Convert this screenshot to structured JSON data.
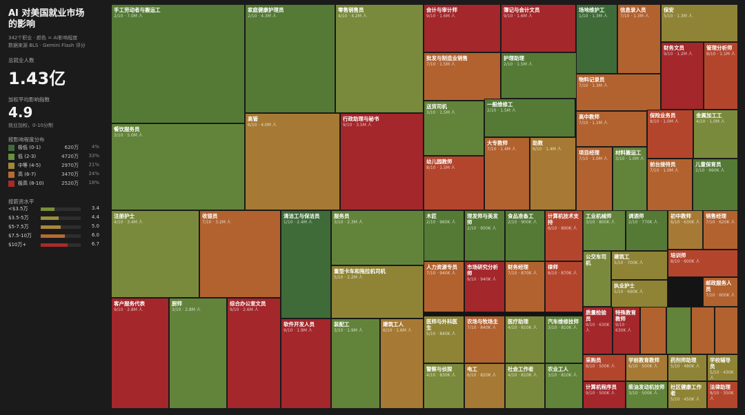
{
  "sidebar": {
    "title": "AI 对美国就业市场的影响",
    "subtitle_line1": "342个职业 · 颜色 = AI影响程度",
    "subtitle_line2": "数据来源 BLS · Gemini Flash 评分",
    "total_label": "总就业人数",
    "total_value": "1.43亿",
    "avg_label": "加权平均影响指数",
    "avg_value": "4.9",
    "avg_note": "就业加权，0-10分制",
    "dist_title": "按影响程度分布",
    "dist": [
      {
        "label": "极低 (0-1)",
        "count": "620万",
        "pct": "4%",
        "color": "#3f6b3a"
      },
      {
        "label": "低 (2-3)",
        "count": "4720万",
        "pct": "33%",
        "color": "#6a8f3f"
      },
      {
        "label": "中等 (4-5)",
        "count": "2970万",
        "pct": "21%",
        "color": "#a08a3a"
      },
      {
        "label": "高 (6-7)",
        "count": "3470万",
        "pct": "24%",
        "color": "#b86a30"
      },
      {
        "label": "极高 (8-10)",
        "count": "2520万",
        "pct": "18%",
        "color": "#a82a2a"
      }
    ],
    "wage_title": "按薪资水平",
    "wages": [
      {
        "label": "<$3.5万",
        "value": "3.4",
        "fill": 0.34,
        "color": "#7a8f3a"
      },
      {
        "label": "$3.5-5万",
        "value": "4.4",
        "fill": 0.44,
        "color": "#9a8f3a"
      },
      {
        "label": "$5-7.5万",
        "value": "5.0",
        "fill": 0.5,
        "color": "#a8883a"
      },
      {
        "label": "$7.5-10万",
        "value": "6.0",
        "fill": 0.6,
        "color": "#b86a30"
      },
      {
        "label": "$10万+",
        "value": "6.7",
        "fill": 0.67,
        "color": "#a82a2a"
      }
    ]
  },
  "chart_data": {
    "type": "treemap",
    "colors": {
      "0": "#3f6b38",
      "1": "#3f6b38",
      "2": "#547a35",
      "3": "#62843a",
      "4": "#7a8a3c",
      "5": "#8f8436",
      "6": "#a67a34",
      "7": "#b2622f",
      "8": "#b4452d",
      "9": "#a3272b",
      "10": "#8f1f25"
    },
    "cells": [
      {
        "name": "手工劳动者与搬运工",
        "score": 2,
        "label": "2/10 · 7.0M 人"
      },
      {
        "name": "家庭健康护理员",
        "score": 2,
        "label": "2/10 · 4.3M 人"
      },
      {
        "name": "零售销售员",
        "score": 4,
        "label": "4/10 · 4.2M 人"
      },
      {
        "name": "会计与审计师",
        "score": 9,
        "label": "9/10 · 1.6M 人"
      },
      {
        "name": "簿记与会计文员",
        "score": 9,
        "label": "9/10 · 1.6M 人"
      },
      {
        "name": "场地维护工",
        "score": 1,
        "label": "1/10 · 1.3M 人"
      },
      {
        "name": "信息录入员",
        "score": 7,
        "label": "7/10 · 1.3M 人"
      },
      {
        "name": "保安",
        "score": 5,
        "label": "5/10 · 1.3M 人"
      },
      {
        "name": "餐饮服务员",
        "score": 3,
        "label": "3/10 · 5.0M 人"
      },
      {
        "name": "高管",
        "score": 6,
        "label": "6/10 · 4.0M 人"
      },
      {
        "name": "行政助理与秘书",
        "score": 9,
        "label": "9/10 · 3.5M 人"
      },
      {
        "name": "批发与制造业销售",
        "score": 7,
        "label": "7/10 · 1.5M 人"
      },
      {
        "name": "护理助理",
        "score": 2,
        "label": "2/10 · 1.5M 人"
      },
      {
        "name": "物料记录员",
        "score": 7,
        "label": "7/10 · 1.3M 人"
      },
      {
        "name": "财务文员",
        "score": 9,
        "label": "9/10 · 1.2M 人"
      },
      {
        "name": "管理分析师",
        "score": 8,
        "label": "8/10 · 1.1M 人"
      },
      {
        "name": "送货司机",
        "score": 3,
        "label": "3/10 · 1.5M 人"
      },
      {
        "name": "一般维修工",
        "score": 2,
        "label": "2/10 · 1.5M 人"
      },
      {
        "name": "高中教师",
        "score": 7,
        "label": "7/10 · 1.1M 人"
      },
      {
        "name": "保险业务员",
        "score": 8,
        "label": "8/10 · 1.0M 人"
      },
      {
        "name": "金属加工工",
        "score": 4,
        "label": "4/10 · 1.0M 人"
      },
      {
        "name": "大专教师",
        "score": 7,
        "label": "7/10 · 1.4M 人"
      },
      {
        "name": "助教",
        "score": 6,
        "label": "6/10 · 1.4M 人"
      },
      {
        "name": "幼儿园教师",
        "score": 8,
        "label": "8/10 · 1.5M 人"
      },
      {
        "name": "项目经理",
        "score": 7,
        "label": "7/10 · 1.0M 人"
      },
      {
        "name": "材料搬运工",
        "score": 3,
        "label": "3/10 · 1.0M 人"
      },
      {
        "name": "前台接待员",
        "score": 7,
        "label": "7/10 · 1.0M 人"
      },
      {
        "name": "儿童保育员",
        "score": 2,
        "label": "2/10 · 990K 人"
      },
      {
        "name": "注册护士",
        "score": 4,
        "label": "4/10 · 3.4M 人"
      },
      {
        "name": "收银员",
        "score": 7,
        "label": "7/10 · 3.2M 人"
      },
      {
        "name": "清洁工与保洁员",
        "score": 1,
        "label": "1/10 · 2.4M 人"
      },
      {
        "name": "服务员",
        "score": 3,
        "label": "3/10 · 2.3M 人"
      },
      {
        "name": "木匠",
        "score": 2,
        "label": "2/10 · 960K 人"
      },
      {
        "name": "理发师与美发师",
        "score": 2,
        "label": "2/10 · 950K 人"
      },
      {
        "name": "食品准备工",
        "score": 2,
        "label": "2/10 · 900K 人"
      },
      {
        "name": "计算机技术支持",
        "score": 8,
        "label": "8/10 · 890K 人"
      },
      {
        "name": "工业机械师",
        "score": 3,
        "label": "3/10 · 800K 人"
      },
      {
        "name": "调酒师",
        "score": 2,
        "label": "2/10 · 770K 人"
      },
      {
        "name": "初中教师",
        "score": 6,
        "label": "6/10 · 630K 人"
      },
      {
        "name": "销售经理",
        "score": 7,
        "label": "7/10 · 620K 人"
      },
      {
        "name": "重型卡车和拖拉机司机",
        "score": 5,
        "label": "5/10 · 2.2M 人"
      },
      {
        "name": "人力资源专员",
        "score": 7,
        "label": "7/10 · 940K 人"
      },
      {
        "name": "市场研究分析师",
        "score": 9,
        "label": "9/10 · 940K 人"
      },
      {
        "name": "财务经理",
        "score": 7,
        "label": "7/10 · 870K 人"
      },
      {
        "name": "律师",
        "score": 8,
        "label": "8/10 · 870K 人"
      },
      {
        "name": "公交车司机",
        "score": "",
        "label": ""
      },
      {
        "name": "建筑工",
        "score": 5,
        "label": "5/10 · 700K 人"
      },
      {
        "name": "执业护士",
        "score": 5,
        "label": "5/10 · 690K 人"
      },
      {
        "name": "培训师",
        "score": 8,
        "label": "8/10 · 600K 人"
      },
      {
        "name": "邮政服务人员",
        "score": 7,
        "label": "7/10 · 600K 人"
      },
      {
        "name": "客户服务代表",
        "score": 9,
        "label": "9/10 · 2.8M 人"
      },
      {
        "name": "厨师",
        "score": 3,
        "label": "3/10 · 2.8M 人"
      },
      {
        "name": "综合办公室文员",
        "score": 9,
        "label": "9/10 · 2.6M 人"
      },
      {
        "name": "软件开发人员",
        "score": 9,
        "label": "9/10 · 1.9M 人"
      },
      {
        "name": "装配工",
        "score": 3,
        "label": "3/10 · 1.9M 人"
      },
      {
        "name": "建筑工人",
        "score": 6,
        "label": "6/10 · 1.6M 人"
      },
      {
        "name": "医师与外科医生",
        "score": 5,
        "label": "5/10 · 840K 人"
      },
      {
        "name": "农场与牧场主",
        "score": 7,
        "label": "7/10 · 840K 人"
      },
      {
        "name": "医疗助理",
        "score": 4,
        "label": "4/10 · 810K 人"
      },
      {
        "name": "汽车维修技师",
        "score": 3,
        "label": "3/10 · 810K 人"
      },
      {
        "name": "质量检验员",
        "score": 9,
        "label": "9/10 · 630K 人"
      },
      {
        "name": "特殊教育教师",
        "score": 9,
        "label": "9/10 · 630K 人"
      },
      {
        "name": "",
        "score": 7,
        "label": ""
      },
      {
        "name": "",
        "score": 3,
        "label": ""
      },
      {
        "name": "",
        "score": 7,
        "label": ""
      },
      {
        "name": "",
        "score": 7,
        "label": ""
      },
      {
        "name": "警察与侦探",
        "score": 4,
        "label": "4/10 · 830K 人"
      },
      {
        "name": "电工",
        "score": 6,
        "label": "6/10 · 820K 人"
      },
      {
        "name": "社会工作者",
        "score": 4,
        "label": "4/10 · 810K 人"
      },
      {
        "name": "农业工人",
        "score": 3,
        "label": "3/10 · 810K 人"
      },
      {
        "name": "采购员",
        "score": 8,
        "label": "8/10 · 500K 人"
      },
      {
        "name": "学前教育教师",
        "score": 6,
        "label": "6/10 · 500K 人"
      },
      {
        "name": "药剂师助理",
        "score": 5,
        "label": "5/10 · 480K 人"
      },
      {
        "name": "学校辅导员",
        "score": 5,
        "label": "5/10 · 430K 人"
      },
      {
        "name": "计算机程序员",
        "score": 9,
        "label": "9/10 · 500K 人"
      },
      {
        "name": "柴油发动机技师",
        "score": 3,
        "label": "3/10 · 500K 人"
      },
      {
        "name": "社区健康工作者",
        "score": 5,
        "label": "5/10 · 450K 人"
      },
      {
        "name": "法律助理",
        "score": 8,
        "label": "8/10 · 350K 人"
      }
    ]
  }
}
